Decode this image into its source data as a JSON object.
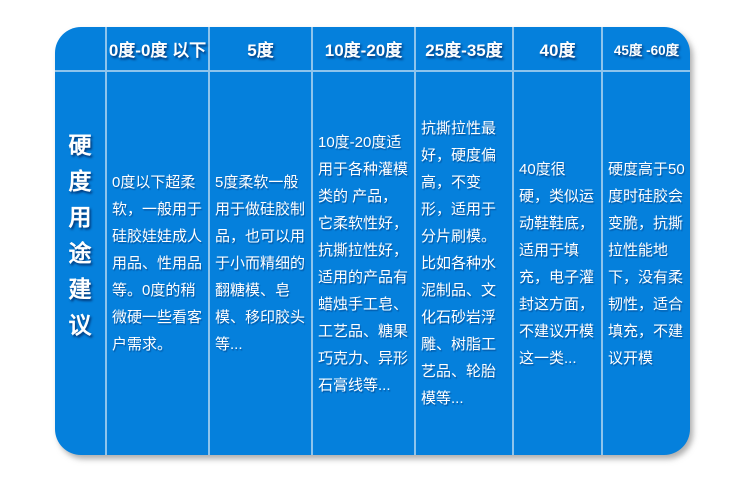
{
  "colors": {
    "table_background": "#0580dc",
    "divider": "#bcd2e2",
    "text": "#ffffff",
    "page_background": "#ffffff"
  },
  "side_title": {
    "text": "硬度用途建议",
    "chars": [
      "硬",
      "度",
      "用",
      "途",
      "建",
      "议"
    ]
  },
  "columns": [
    {
      "header": "0度-0度 以下",
      "body": "0度以下超柔软，一般用于硅胶娃娃成人用品、性用品等。0度的稍微硬一些看客户需求。"
    },
    {
      "header": "5度",
      "body": "5度柔软一般用于做硅胶制品，也可以用于小而精细的翻糖模、皂模、移印胶头等..."
    },
    {
      "header": "10度-20度",
      "body": "10度-20度适用于各种灌模类的 产品，它柔软性好，抗撕拉性好，适用的产品有蜡烛手工皂、工艺品、糖果巧克力、异形石膏线等..."
    },
    {
      "header": "25度-35度",
      "body": "抗撕拉性最好，硬度偏高，不变形，适用于分片刷模。比如各种水泥制品、文化石砂岩浮雕、树脂工艺品、轮胎模等..."
    },
    {
      "header": "40度",
      "body": "40度很 硬，类似运动鞋鞋底，适用于填充，电子灌封这方面，不建议开模这一类..."
    },
    {
      "header": "45度 -60度",
      "body": "硬度高于50度时硅胶会变脆，抗撕拉性能地下，没有柔韧性，适合填充，不建议开模"
    }
  ]
}
